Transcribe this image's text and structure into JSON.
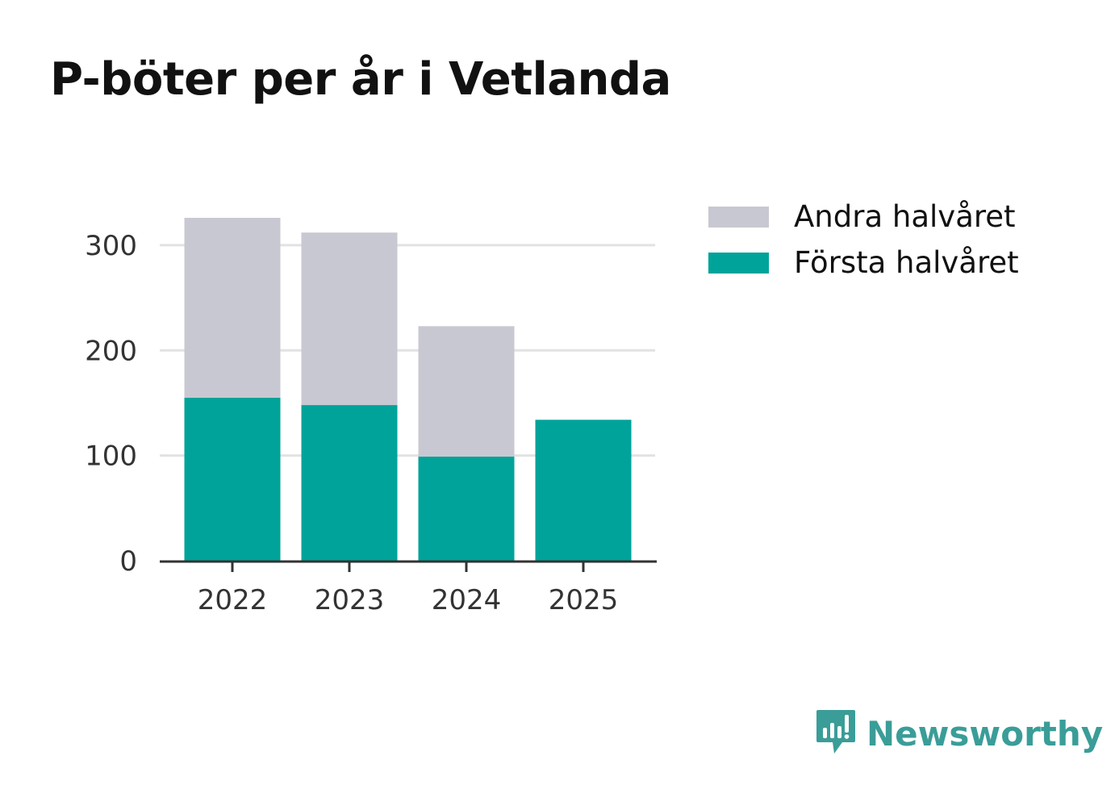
{
  "chart_data": {
    "type": "bar",
    "stacked": true,
    "title": "P-böter per år i Vetlanda",
    "categories": [
      "2022",
      "2023",
      "2024",
      "2025"
    ],
    "series": [
      {
        "name": "Första halvåret",
        "color": "#00a39a",
        "values": [
          155,
          148,
          99,
          134
        ]
      },
      {
        "name": "Andra halvåret",
        "color": "#c8c8d2",
        "values": [
          171,
          164,
          124,
          0
        ]
      }
    ],
    "yticks": [
      0,
      100,
      200,
      300
    ],
    "ylim": [
      0,
      326
    ],
    "xlabel": "",
    "ylabel": "",
    "grid": true,
    "legend_position": "top-right"
  },
  "legend": {
    "items": [
      {
        "label": "Andra halvåret",
        "color": "#c8c8d2"
      },
      {
        "label": "Första halvåret",
        "color": "#00a39a"
      }
    ]
  },
  "brand": {
    "name": "Newsworthy",
    "icon": "newsworthy-logo-icon",
    "color": "#3a9d98"
  }
}
